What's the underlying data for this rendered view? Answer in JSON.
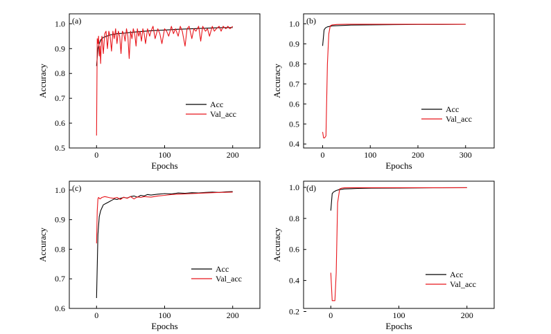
{
  "colors": {
    "acc": "#000000",
    "val_acc": "#e8141a",
    "axis": "#000000",
    "background": "#ffffff"
  },
  "chart_data": [
    {
      "type": "line",
      "panel_label": "(a)",
      "xlabel": "Epochs",
      "ylabel": "Accuracy",
      "xlim": [
        -40,
        240
      ],
      "ylim": [
        0.5,
        1.04
      ],
      "xticks": [
        0,
        100,
        200
      ],
      "yticks": [
        0.5,
        0.6,
        0.7,
        0.8,
        0.9,
        1.0
      ],
      "ytick_labels": [
        "0.5",
        "0.6",
        "0.7",
        "0.8",
        "0.9",
        "1.0"
      ],
      "legend": "right",
      "series": [
        {
          "name": "Acc",
          "color": "#000000",
          "x": [
            0,
            2,
            4,
            6,
            10,
            15,
            20,
            30,
            40,
            50,
            60,
            80,
            100,
            120,
            140,
            160,
            180,
            200
          ],
          "y": [
            0.83,
            0.9,
            0.92,
            0.935,
            0.945,
            0.95,
            0.955,
            0.96,
            0.962,
            0.965,
            0.968,
            0.972,
            0.975,
            0.978,
            0.98,
            0.982,
            0.984,
            0.985
          ]
        },
        {
          "name": "Val_acc",
          "color": "#e8141a",
          "x": [
            0,
            1,
            2,
            3,
            4,
            5,
            6,
            7,
            8,
            10,
            12,
            14,
            16,
            18,
            20,
            22,
            24,
            26,
            28,
            30,
            32,
            34,
            36,
            38,
            40,
            42,
            44,
            46,
            48,
            50,
            52,
            54,
            56,
            58,
            60,
            62,
            64,
            66,
            68,
            70,
            72,
            75,
            78,
            80,
            83,
            86,
            90,
            93,
            96,
            100,
            103,
            106,
            110,
            113,
            116,
            120,
            123,
            126,
            130,
            133,
            136,
            140,
            143,
            146,
            150,
            153,
            156,
            160,
            163,
            166,
            170,
            173,
            176,
            180,
            183,
            186,
            190,
            193,
            196,
            200
          ],
          "y": [
            0.55,
            0.94,
            0.92,
            0.95,
            0.87,
            0.91,
            0.84,
            0.93,
            0.95,
            0.88,
            0.96,
            0.97,
            0.9,
            0.97,
            0.95,
            0.89,
            0.97,
            0.94,
            0.98,
            0.92,
            0.97,
            0.95,
            0.88,
            0.97,
            0.96,
            0.93,
            0.98,
            0.95,
            0.86,
            0.97,
            0.94,
            0.98,
            0.96,
            0.91,
            0.98,
            0.95,
            0.97,
            0.93,
            0.98,
            0.96,
            0.92,
            0.98,
            0.95,
            0.97,
            0.99,
            0.94,
            0.98,
            0.96,
            0.92,
            0.98,
            0.97,
            0.95,
            0.99,
            0.96,
            0.98,
            0.95,
            0.99,
            0.97,
            0.91,
            0.98,
            0.99,
            0.94,
            0.98,
            0.97,
            0.99,
            0.93,
            0.99,
            0.97,
            0.98,
            0.95,
            0.99,
            0.97,
            0.98,
            0.99,
            0.97,
            0.99,
            0.98,
            0.99,
            0.98,
            0.99
          ]
        }
      ]
    },
    {
      "type": "line",
      "panel_label": "(b)",
      "xlabel": "Epochs",
      "ylabel": "Accuracy",
      "xlim": [
        -40,
        360
      ],
      "ylim": [
        0.38,
        1.05
      ],
      "xticks": [
        0,
        100,
        200,
        300
      ],
      "yticks": [
        0.4,
        0.5,
        0.6,
        0.7,
        0.8,
        0.9,
        1.0
      ],
      "ytick_labels": [
        "0.4",
        "0.5",
        "0.6",
        "0.7",
        "0.8",
        "0.9",
        "1.0"
      ],
      "legend": "right",
      "series": [
        {
          "name": "Acc",
          "color": "#000000",
          "x": [
            0,
            3,
            6,
            10,
            20,
            40,
            60,
            100,
            150,
            200,
            250,
            300
          ],
          "y": [
            0.89,
            0.97,
            0.98,
            0.985,
            0.99,
            0.992,
            0.994,
            0.995,
            0.996,
            0.997,
            0.997,
            0.998
          ]
        },
        {
          "name": "Val_acc",
          "color": "#e8141a",
          "x": [
            0,
            2,
            4,
            7,
            10,
            13,
            16,
            20,
            30,
            50,
            100,
            150,
            200,
            250,
            300
          ],
          "y": [
            0.46,
            0.43,
            0.43,
            0.44,
            0.8,
            0.95,
            0.99,
            0.995,
            0.997,
            0.998,
            0.998,
            0.998,
            0.998,
            0.998,
            0.998
          ]
        }
      ]
    },
    {
      "type": "line",
      "panel_label": "(c)",
      "xlabel": "Epochs",
      "ylabel": "Accuracy",
      "xlim": [
        -40,
        240
      ],
      "ylim": [
        0.6,
        1.03
      ],
      "xticks": [
        0,
        100,
        200
      ],
      "yticks": [
        0.6,
        0.7,
        0.8,
        0.9,
        1.0
      ],
      "ytick_labels": [
        "0.6",
        "0.7",
        "0.8",
        "0.9",
        "1.0"
      ],
      "legend": "right",
      "series": [
        {
          "name": "Acc",
          "color": "#000000",
          "x": [
            0,
            2,
            4,
            6,
            8,
            10,
            14,
            18,
            22,
            26,
            30,
            35,
            40,
            45,
            50,
            55,
            60,
            65,
            70,
            75,
            80,
            90,
            100,
            110,
            120,
            130,
            140,
            150,
            160,
            170,
            180,
            190,
            200
          ],
          "y": [
            0.635,
            0.85,
            0.91,
            0.93,
            0.94,
            0.95,
            0.955,
            0.96,
            0.965,
            0.97,
            0.968,
            0.972,
            0.975,
            0.973,
            0.978,
            0.98,
            0.976,
            0.982,
            0.98,
            0.985,
            0.983,
            0.986,
            0.988,
            0.987,
            0.99,
            0.989,
            0.991,
            0.99,
            0.992,
            0.993,
            0.992,
            0.994,
            0.995
          ]
        },
        {
          "name": "Val_acc",
          "color": "#e8141a",
          "x": [
            0,
            1,
            2,
            3,
            5,
            8,
            12,
            16,
            20,
            25,
            30,
            35,
            40,
            45,
            50,
            55,
            60,
            65,
            70,
            80,
            90,
            100,
            110,
            120,
            140,
            160,
            180,
            200
          ],
          "y": [
            0.82,
            0.93,
            0.97,
            0.975,
            0.97,
            0.975,
            0.978,
            0.976,
            0.974,
            0.972,
            0.975,
            0.968,
            0.976,
            0.972,
            0.978,
            0.97,
            0.977,
            0.975,
            0.978,
            0.976,
            0.98,
            0.982,
            0.985,
            0.986,
            0.988,
            0.99,
            0.992,
            0.993
          ]
        }
      ]
    },
    {
      "type": "line",
      "panel_label": "(d)",
      "xlabel": "Epochs",
      "ylabel": "Accuracy",
      "xlim": [
        -40,
        240
      ],
      "ylim": [
        0.22,
        1.04
      ],
      "xticks": [
        0,
        100,
        200
      ],
      "yticks": [
        0.2,
        0.4,
        0.6,
        0.8,
        1.0
      ],
      "ytick_labels": [
        "0.2",
        "0.4",
        "0.6",
        "0.8",
        "1.0"
      ],
      "legend": "right",
      "series": [
        {
          "name": "Acc",
          "color": "#000000",
          "x": [
            0,
            2,
            4,
            8,
            12,
            20,
            40,
            60,
            100,
            150,
            200
          ],
          "y": [
            0.85,
            0.96,
            0.97,
            0.98,
            0.985,
            0.99,
            0.993,
            0.995,
            0.996,
            0.997,
            0.998
          ]
        },
        {
          "name": "Val_acc",
          "color": "#e8141a",
          "x": [
            0,
            2,
            4,
            6,
            8,
            10,
            13,
            16,
            20,
            40,
            100,
            150,
            200
          ],
          "y": [
            0.45,
            0.27,
            0.27,
            0.27,
            0.45,
            0.9,
            0.99,
            0.995,
            0.997,
            0.998,
            0.998,
            0.998,
            0.998
          ]
        }
      ]
    }
  ]
}
